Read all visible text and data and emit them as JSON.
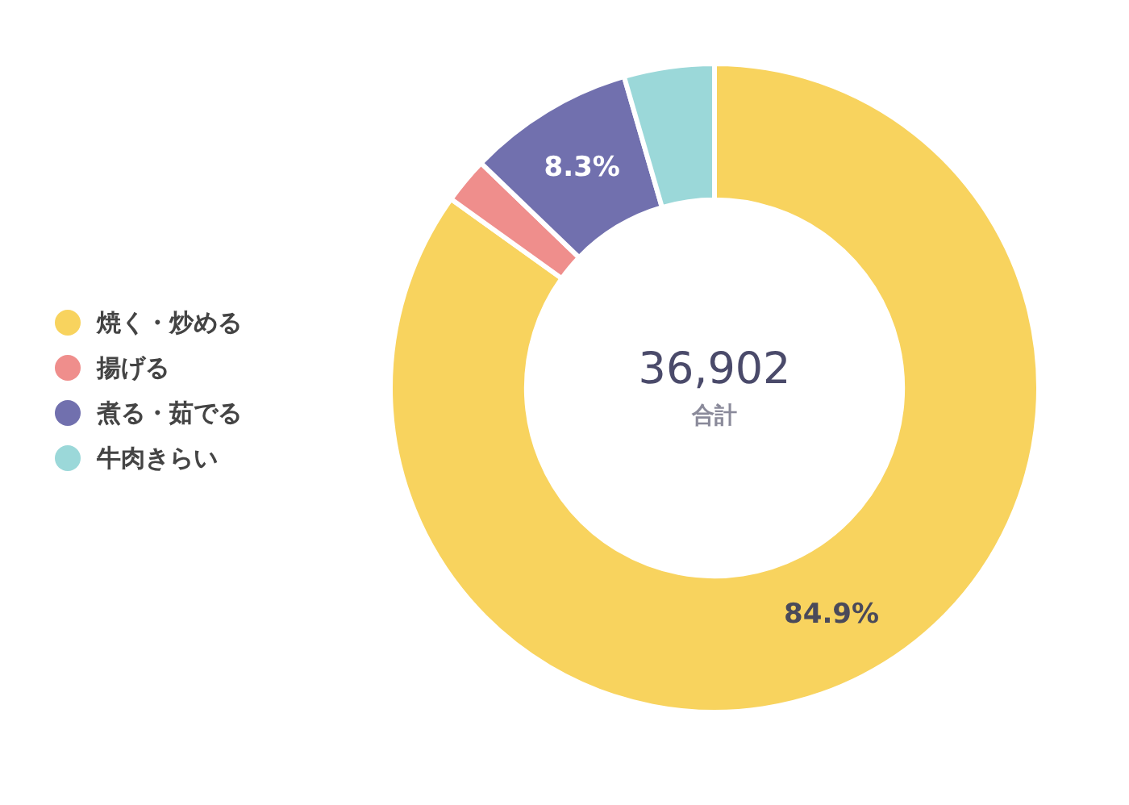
{
  "chart_data": {
    "type": "donut",
    "categories": [
      "焼く・炒める",
      "揚げる",
      "煮る・茹でる",
      "牛肉きらい"
    ],
    "values": [
      84.9,
      2.3,
      8.3,
      4.5
    ],
    "value_labels": [
      "84.9%",
      null,
      "8.3%",
      null
    ],
    "colors": [
      "#f8d35e",
      "#ef8e8c",
      "#7170ae",
      "#9bd8d9"
    ],
    "annotations": [
      "36,902",
      "合計"
    ],
    "legend": "left"
  }
}
